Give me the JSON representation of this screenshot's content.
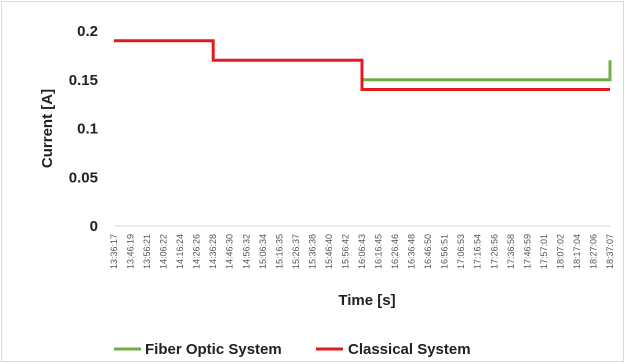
{
  "chart_data": {
    "type": "line",
    "title": "",
    "xlabel": "Time [s]",
    "ylabel": "Current [A]",
    "ylim": [
      0,
      0.2
    ],
    "yticks": [
      0,
      0.05,
      0.1,
      0.15,
      0.2
    ],
    "ytick_labels": [
      "0",
      "0.05",
      "0.1",
      "0.15",
      "0.2"
    ],
    "grid": false,
    "legend_position": "bottom",
    "x": [
      "13:36:17",
      "13:46:19",
      "13:56:21",
      "14:06:22",
      "14:16:24",
      "14:26:26",
      "14:36:28",
      "14:46:30",
      "14:56:32",
      "15:06:34",
      "15:16:35",
      "15:26:37",
      "15:36:38",
      "15:46:40",
      "15:56:42",
      "16:06:43",
      "16:16:45",
      "16:26:46",
      "16:36:48",
      "16:46:50",
      "16:56:51",
      "17:06:53",
      "17:16:54",
      "17:26:56",
      "17:36:58",
      "17:46:59",
      "17:57:01",
      "18:07:02",
      "18:17:04",
      "18:27:06",
      "18:37:07"
    ],
    "series": [
      {
        "name": "Fiber Optic System",
        "color": "#70ad47",
        "points": [
          {
            "x": "16:06:43",
            "y": 0.15
          },
          {
            "x": "18:37:07",
            "y": 0.15
          },
          {
            "x": "18:37:07",
            "y": 0.17
          }
        ]
      },
      {
        "name": "Classical System",
        "color": "#e31a1c",
        "points": [
          {
            "x": "13:36:17",
            "y": 0.19
          },
          {
            "x": "14:36:28",
            "y": 0.19
          },
          {
            "x": "14:36:28",
            "y": 0.17
          },
          {
            "x": "16:06:43",
            "y": 0.17
          },
          {
            "x": "16:06:43",
            "y": 0.14
          },
          {
            "x": "18:37:07",
            "y": 0.14
          }
        ]
      }
    ]
  }
}
